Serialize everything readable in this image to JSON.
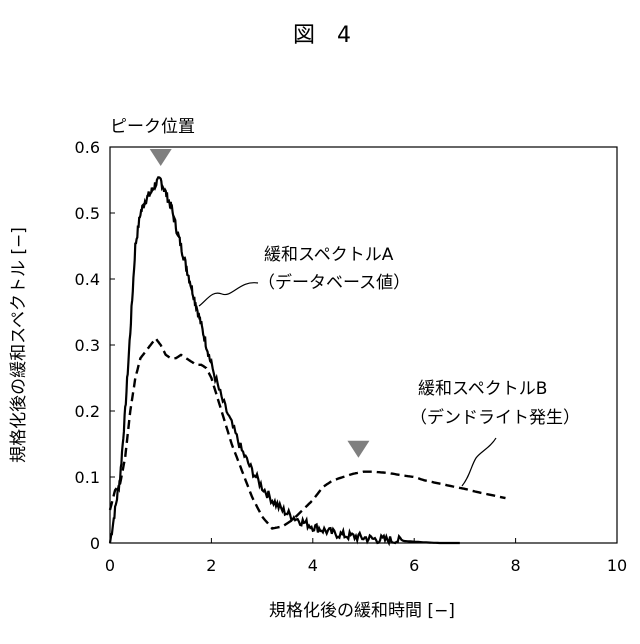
{
  "figure_title": "図　4",
  "chart_data": {
    "type": "line",
    "title": "",
    "xlabel": "規格化後の緩和時間 [−]",
    "ylabel": "規格化後の緩和スペクトル [−]",
    "xlim": [
      0,
      10
    ],
    "ylim": [
      0,
      0.6
    ],
    "x_ticks": [
      "0",
      "2",
      "4",
      "6",
      "8",
      "10"
    ],
    "y_ticks": [
      "0",
      "0.1",
      "0.2",
      "0.3",
      "0.4",
      "0.5",
      "0.6"
    ],
    "grid": false,
    "legend": "none",
    "series": [
      {
        "name": "緩和スペクトルA",
        "style": "solid",
        "color": "#000000",
        "x": [
          0.0,
          0.1,
          0.2,
          0.3,
          0.4,
          0.5,
          0.6,
          0.7,
          0.8,
          0.9,
          1.0,
          1.1,
          1.2,
          1.3,
          1.4,
          1.5,
          1.6,
          1.7,
          1.8,
          1.9,
          2.0,
          2.2,
          2.4,
          2.6,
          2.8,
          3.0,
          3.2,
          3.4,
          3.6,
          3.8,
          4.0,
          4.2,
          4.4,
          4.6,
          4.8,
          5.0,
          5.2,
          5.4,
          5.6,
          5.8,
          6.0,
          6.2,
          6.5,
          6.9
        ],
        "values": [
          0.0,
          0.05,
          0.1,
          0.2,
          0.32,
          0.45,
          0.5,
          0.52,
          0.53,
          0.545,
          0.55,
          0.53,
          0.51,
          0.48,
          0.45,
          0.42,
          0.39,
          0.36,
          0.33,
          0.3,
          0.27,
          0.22,
          0.18,
          0.14,
          0.11,
          0.085,
          0.065,
          0.05,
          0.04,
          0.032,
          0.025,
          0.02,
          0.015,
          0.012,
          0.01,
          0.008,
          0.006,
          0.005,
          0.004,
          0.003,
          0.002,
          0.001,
          0.0,
          0.0
        ]
      },
      {
        "name": "緩和スペクトルB",
        "style": "dashed",
        "color": "#000000",
        "x": [
          0.0,
          0.1,
          0.2,
          0.3,
          0.4,
          0.5,
          0.6,
          0.7,
          0.8,
          0.9,
          1.0,
          1.1,
          1.2,
          1.3,
          1.4,
          1.5,
          1.6,
          1.7,
          1.8,
          1.9,
          2.0,
          2.2,
          2.4,
          2.6,
          2.8,
          3.0,
          3.2,
          3.4,
          3.6,
          3.8,
          4.0,
          4.2,
          4.4,
          4.6,
          4.8,
          5.0,
          5.2,
          5.5,
          5.8,
          6.0,
          6.2,
          6.5,
          6.8,
          7.0,
          7.2,
          7.5,
          7.8
        ],
        "values": [
          0.05,
          0.08,
          0.09,
          0.13,
          0.2,
          0.25,
          0.28,
          0.29,
          0.3,
          0.31,
          0.3,
          0.285,
          0.28,
          0.28,
          0.285,
          0.28,
          0.275,
          0.27,
          0.27,
          0.265,
          0.25,
          0.2,
          0.15,
          0.11,
          0.07,
          0.04,
          0.022,
          0.025,
          0.035,
          0.05,
          0.065,
          0.085,
          0.095,
          0.1,
          0.105,
          0.108,
          0.108,
          0.106,
          0.102,
          0.1,
          0.095,
          0.09,
          0.085,
          0.082,
          0.078,
          0.073,
          0.068
        ]
      }
    ],
    "annotations": [
      {
        "text": "ピーク位置",
        "kind": "label"
      },
      {
        "text": "緩和スペクトルA",
        "sub": "（データベース値）",
        "series": "緩和スペクトルA"
      },
      {
        "text": "緩和スペクトルB",
        "sub": "（デンドライト発生）",
        "series": "緩和スペクトルB"
      }
    ],
    "peak_markers": [
      {
        "x": 1.0,
        "color": "#7f7f7f"
      },
      {
        "x": 4.9,
        "color": "#7f7f7f"
      }
    ]
  }
}
